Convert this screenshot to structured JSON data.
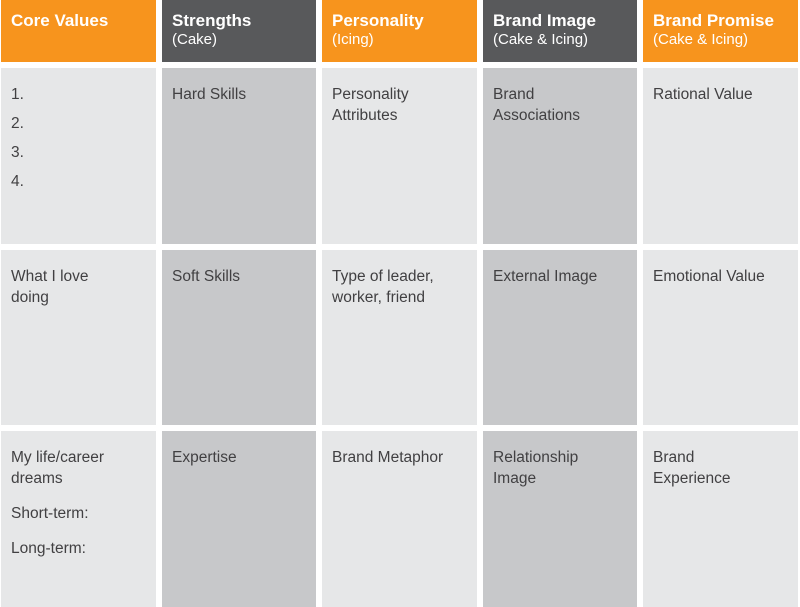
{
  "headers": [
    {
      "title": "Core Values",
      "subtitle": ""
    },
    {
      "title": "Strengths",
      "subtitle": "(Cake)"
    },
    {
      "title": "Personality",
      "subtitle": "(Icing)"
    },
    {
      "title": "Brand Image",
      "subtitle": "(Cake & Icing)"
    },
    {
      "title": "Brand Promise",
      "subtitle": "(Cake & Icing)"
    }
  ],
  "rows": [
    {
      "core_values": [
        "1.",
        "2.",
        "3.",
        "4."
      ],
      "strengths": [
        "Hard Skills"
      ],
      "personality": [
        "Personality",
        "Attributes"
      ],
      "brand_image": [
        "Brand",
        "Associations"
      ],
      "brand_promise": [
        "Rational Value"
      ]
    },
    {
      "core_values": [
        "What I love",
        "doing"
      ],
      "strengths": [
        "Soft Skills"
      ],
      "personality": [
        "Type of leader,",
        "worker, friend"
      ],
      "brand_image": [
        "External Image"
      ],
      "brand_promise": [
        "Emotional Value"
      ]
    },
    {
      "core_values": [
        "My life/career",
        "dreams",
        "Short-term:",
        "Long-term:"
      ],
      "strengths": [
        "Expertise"
      ],
      "personality": [
        "Brand Metaphor"
      ],
      "brand_image": [
        "Relationship",
        "Image"
      ],
      "brand_promise": [
        "Brand",
        "Experience"
      ]
    }
  ],
  "colors": {
    "orange_header": "#F7941D",
    "dark_header": "#58595B",
    "light_cell": "#E6E7E8",
    "mid_cell": "#C7C8CA",
    "text": "#414042"
  }
}
